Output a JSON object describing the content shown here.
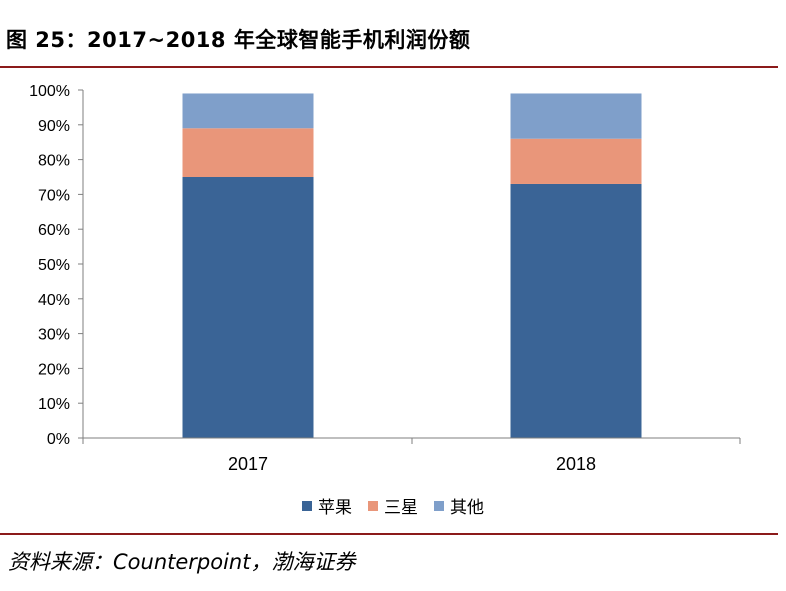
{
  "title": "图 25：2017~2018 年全球智能手机利润份额",
  "source": "资料来源：Counterpoint，渤海证券",
  "colors": {
    "rule": "#8b1a1a",
    "axis": "#7f7f7f"
  },
  "chart_data": {
    "type": "bar",
    "stacked": true,
    "categories": [
      "2017",
      "2018"
    ],
    "series": [
      {
        "name": "苹果",
        "values": [
          75,
          73
        ],
        "color": "#3a6496"
      },
      {
        "name": "三星",
        "values": [
          14,
          13
        ],
        "color": "#e9967a"
      },
      {
        "name": "其他",
        "values": [
          10,
          13
        ],
        "color": "#7f9fca"
      }
    ],
    "ylim": [
      0,
      100
    ],
    "yticks": [
      "0%",
      "10%",
      "20%",
      "30%",
      "40%",
      "50%",
      "60%",
      "70%",
      "80%",
      "90%",
      "100%"
    ],
    "grid": false,
    "legend_position": "bottom"
  }
}
